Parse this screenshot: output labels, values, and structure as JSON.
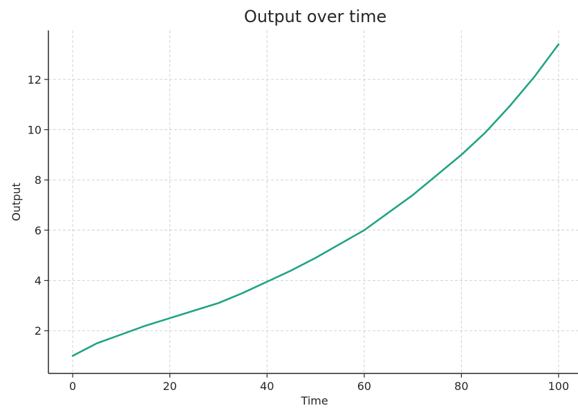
{
  "chart_data": {
    "type": "line",
    "title": "Output over time",
    "xlabel": "Time",
    "ylabel": "Output",
    "xlim": [
      -5,
      104
    ],
    "ylim": [
      0.3,
      13.95
    ],
    "xticks": [
      "0",
      "20",
      "40",
      "60",
      "80",
      "100"
    ],
    "yticks": [
      "2",
      "4",
      "6",
      "8",
      "10",
      "12"
    ],
    "grid": true,
    "line_color": "#20a384",
    "series": [
      {
        "x": [
          0,
          5,
          10,
          15,
          20,
          25,
          30,
          35,
          40,
          45,
          50,
          55,
          60,
          65,
          70,
          75,
          80,
          85,
          90,
          95,
          100
        ],
        "y": [
          1.0,
          1.5,
          1.85,
          2.2,
          2.5,
          2.8,
          3.1,
          3.5,
          3.95,
          4.4,
          4.9,
          5.45,
          6.0,
          6.7,
          7.4,
          8.2,
          9.0,
          9.9,
          10.95,
          12.1,
          13.4
        ]
      }
    ]
  }
}
